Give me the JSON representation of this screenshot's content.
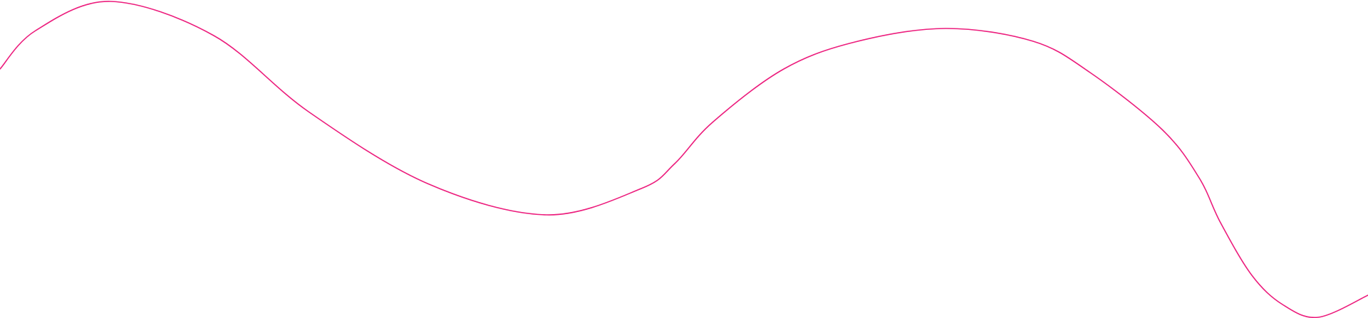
{
  "background_color": "#ffffff",
  "decoration": {
    "type": "wavy-line",
    "stroke_color": "#ec1c7c"
  }
}
